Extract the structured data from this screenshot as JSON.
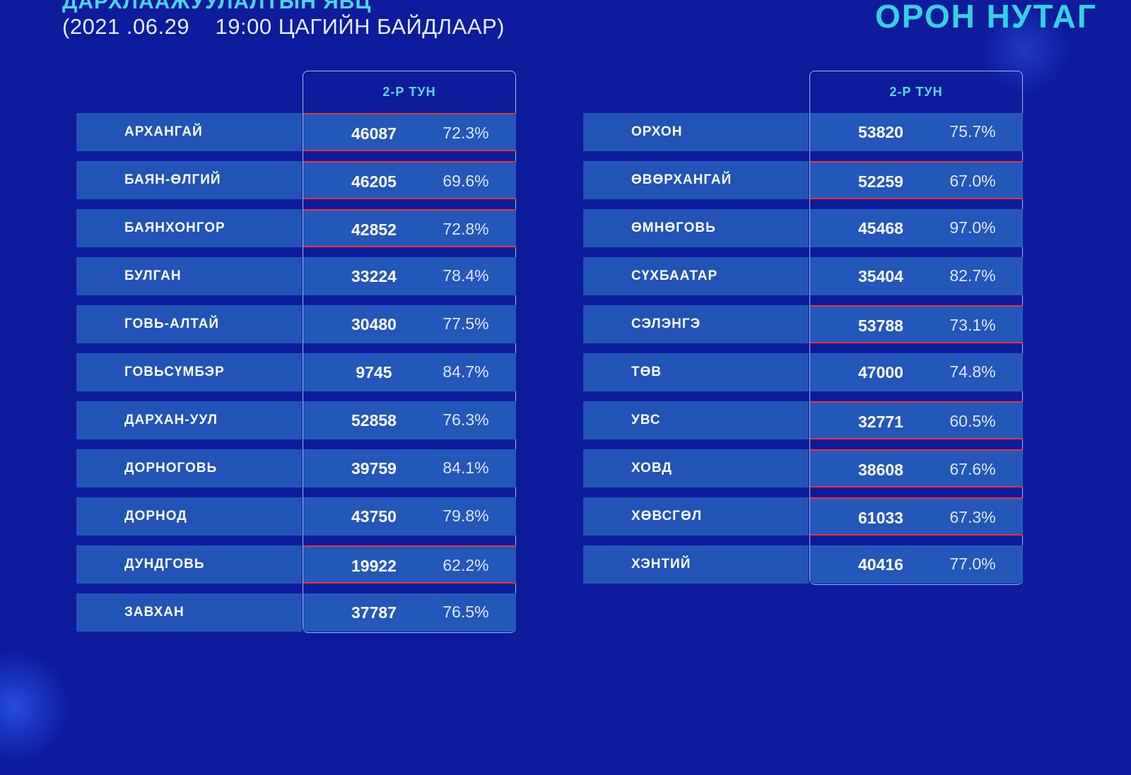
{
  "header": {
    "title": "ДАРХЛААЖУУЛАЛТЫН ЯВЦ",
    "subtitle": "(2021 .06.29    19:00 ЦАГИЙН БАЙДЛААР)",
    "brand": "ОРОН НУТАГ"
  },
  "tables": {
    "left": {
      "column_header": "2-Р ТУН",
      "rows": [
        {
          "name": "АРХАНГАЙ",
          "count": "46087",
          "percent": "72.3%",
          "highlighted": true
        },
        {
          "name": "БАЯН-ӨЛГИЙ",
          "count": "46205",
          "percent": "69.6%",
          "highlighted": true
        },
        {
          "name": "БАЯНХОНГОР",
          "count": "42852",
          "percent": "72.8%",
          "highlighted": true
        },
        {
          "name": "БУЛГАН",
          "count": "33224",
          "percent": "78.4%",
          "highlighted": false
        },
        {
          "name": "ГОВЬ-АЛТАЙ",
          "count": "30480",
          "percent": "77.5%",
          "highlighted": false
        },
        {
          "name": "ГОВЬСҮМБЭР",
          "count": "9745",
          "percent": "84.7%",
          "highlighted": false
        },
        {
          "name": "ДАРХАН-УУЛ",
          "count": "52858",
          "percent": "76.3%",
          "highlighted": false
        },
        {
          "name": "ДОРНОГОВЬ",
          "count": "39759",
          "percent": "84.1%",
          "highlighted": false
        },
        {
          "name": "ДОРНОД",
          "count": "43750",
          "percent": "79.8%",
          "highlighted": false
        },
        {
          "name": "ДУНДГОВЬ",
          "count": "19922",
          "percent": "62.2%",
          "highlighted": true
        },
        {
          "name": "ЗАВХАН",
          "count": "37787",
          "percent": "76.5%",
          "highlighted": false
        }
      ]
    },
    "right": {
      "column_header": "2-Р ТУН",
      "rows": [
        {
          "name": "ОРХОН",
          "count": "53820",
          "percent": "75.7%",
          "highlighted": false
        },
        {
          "name": "ӨВӨРХАНГАЙ",
          "count": "52259",
          "percent": "67.0%",
          "highlighted": true
        },
        {
          "name": "ӨМНӨГОВЬ",
          "count": "45468",
          "percent": "97.0%",
          "highlighted": false
        },
        {
          "name": "СҮХБААТАР",
          "count": "35404",
          "percent": "82.7%",
          "highlighted": false
        },
        {
          "name": "СЭЛЭНГЭ",
          "count": "53788",
          "percent": "73.1%",
          "highlighted": true
        },
        {
          "name": "ТӨВ",
          "count": "47000",
          "percent": "74.8%",
          "highlighted": false
        },
        {
          "name": "УВС",
          "count": "32771",
          "percent": "60.5%",
          "highlighted": true
        },
        {
          "name": "ХОВД",
          "count": "38608",
          "percent": "67.6%",
          "highlighted": true
        },
        {
          "name": "ХӨВСГӨЛ",
          "count": "61033",
          "percent": "67.3%",
          "highlighted": true
        },
        {
          "name": "ХЭНТИЙ",
          "count": "40416",
          "percent": "77.0%",
          "highlighted": false
        }
      ]
    }
  },
  "colors": {
    "background": "#0c1c9c",
    "row": "#2253b7",
    "accent": "#37d0e4",
    "highlight_line": "#e5362e"
  }
}
